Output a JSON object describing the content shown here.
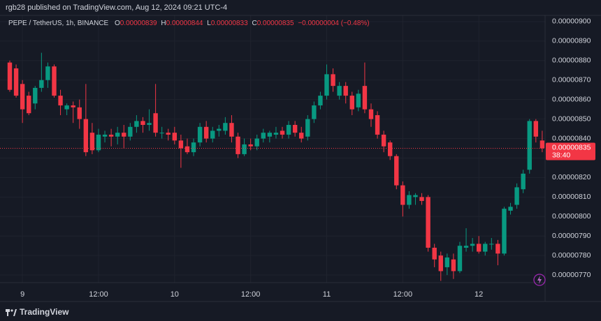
{
  "chart_data": {
    "type": "candlestick",
    "header": "rgb28 published on TradingView.com, Aug 12, 2024 09:21 UTC-4",
    "legend": {
      "symbol": "PEPE / TetherUS, 1h, BINANCE",
      "open_label": "O",
      "open": "0.00000839",
      "high_label": "H",
      "high": "0.00000844",
      "low_label": "L",
      "low": "0.00000833",
      "close_label": "C",
      "close": "0.00000835",
      "change": "−0.00000004 (−0.48%)"
    },
    "last_price_label": "0.00000835",
    "countdown": "38:40",
    "brand": "TradingView",
    "up_color": "#089981",
    "down_color": "#f23645",
    "categories": [
      null,
      null,
      "9",
      null,
      null,
      null,
      null,
      null,
      null,
      null,
      null,
      null,
      null,
      null,
      "12:00",
      null,
      null,
      null,
      null,
      null,
      null,
      null,
      null,
      null,
      null,
      null,
      "10",
      null,
      null,
      null,
      null,
      null,
      null,
      null,
      null,
      null,
      null,
      null,
      "12:00",
      null,
      null,
      null,
      null,
      null,
      null,
      null,
      null,
      null,
      null,
      null,
      "11",
      null,
      null,
      null,
      null,
      null,
      null,
      null,
      null,
      null,
      null,
      null,
      "12:00",
      null,
      null,
      null,
      null,
      null,
      null,
      null,
      null,
      null,
      null,
      null,
      "12",
      null,
      null,
      null,
      null,
      null,
      null,
      null,
      null,
      null,
      null
    ],
    "open": [
      8.79e-06,
      8.76e-06,
      8.68e-06,
      8.62e-06,
      8.58e-06,
      8.66e-06,
      8.7e-06,
      8.77e-06,
      8.62e-06,
      8.55e-06,
      8.57e-06,
      8.56e-06,
      8.5e-06,
      8.43e-06,
      8.34e-06,
      8.41e-06,
      8.42e-06,
      8.41e-06,
      8.43e-06,
      8.41e-06,
      8.46e-06,
      8.49e-06,
      8.47e-06,
      8.53e-06,
      8.43e-06,
      8.43e-06,
      8.43e-06,
      8.39e-06,
      8.36e-06,
      8.33e-06,
      8.38e-06,
      8.46e-06,
      8.4e-06,
      8.44e-06,
      8.44e-06,
      8.48e-06,
      8.41e-06,
      8.32e-06,
      8.37e-06,
      8.36e-06,
      8.4e-06,
      8.41e-06,
      8.42e-06,
      8.44e-06,
      8.42e-06,
      8.47e-06,
      8.43e-06,
      8.41e-06,
      8.5e-06,
      8.57e-06,
      8.62e-06,
      8.73e-06,
      8.62e-06,
      8.67e-06,
      8.62e-06,
      8.56e-06,
      8.67e-06,
      8.55e-06,
      8.52e-06,
      8.42e-06,
      8.38e-06,
      8.31e-06,
      8.16e-06,
      8.06e-06,
      8.1e-06,
      8.1e-06,
      8.1e-06,
      7.84e-06,
      7.8e-06,
      7.74e-06,
      7.78e-06,
      7.72e-06,
      7.84e-06,
      7.85e-06,
      7.86e-06,
      7.82e-06,
      7.86e-06,
      7.86e-06,
      7.81e-06,
      8.03e-06,
      8.06e-06,
      8.14e-06,
      8.24e-06,
      8.49e-06,
      8.39e-06
    ],
    "high": [
      8.8e-06,
      8.78e-06,
      8.7e-06,
      8.64e-06,
      8.67e-06,
      8.84e-06,
      8.79e-06,
      8.78e-06,
      8.65e-06,
      8.58e-06,
      8.59e-06,
      8.6e-06,
      8.68e-06,
      8.48e-06,
      8.45e-06,
      8.44e-06,
      8.45e-06,
      8.46e-06,
      8.47e-06,
      8.48e-06,
      8.52e-06,
      8.51e-06,
      8.55e-06,
      8.68e-06,
      8.46e-06,
      8.45e-06,
      8.46e-06,
      8.42e-06,
      8.4e-06,
      8.4e-06,
      8.48e-06,
      8.49e-06,
      8.46e-06,
      8.47e-06,
      8.51e-06,
      8.52e-06,
      8.43e-06,
      8.4e-06,
      8.4e-06,
      8.42e-06,
      8.45e-06,
      8.44e-06,
      8.46e-06,
      8.46e-06,
      8.49e-06,
      8.49e-06,
      8.46e-06,
      8.52e-06,
      8.59e-06,
      8.64e-06,
      8.78e-06,
      8.76e-06,
      8.69e-06,
      8.69e-06,
      8.64e-06,
      8.65e-06,
      8.79e-06,
      8.58e-06,
      8.54e-06,
      8.44e-06,
      8.39e-06,
      8.32e-06,
      8.18e-06,
      8.13e-06,
      8.12e-06,
      8.12e-06,
      8.11e-06,
      7.86e-06,
      7.82e-06,
      7.81e-06,
      7.81e-06,
      7.87e-06,
      7.94e-06,
      7.89e-06,
      7.9e-06,
      7.87e-06,
      7.89e-06,
      7.88e-06,
      8.05e-06,
      8.07e-06,
      8.17e-06,
      8.24e-06,
      8.5e-06,
      8.5e-06,
      8.44e-06
    ],
    "low": [
      8.64e-06,
      8.61e-06,
      8.48e-06,
      8.52e-06,
      8.55e-06,
      8.64e-06,
      8.66e-06,
      8.61e-06,
      8.52e-06,
      8.52e-06,
      8.48e-06,
      8.45e-06,
      8.31e-06,
      8.32e-06,
      8.33e-06,
      8.38e-06,
      8.36e-06,
      8.37e-06,
      8.35e-06,
      8.39e-06,
      8.43e-06,
      8.43e-06,
      8.44e-06,
      8.41e-06,
      8.4e-06,
      8.39e-06,
      8.37e-06,
      8.25e-06,
      8.32e-06,
      8.31e-06,
      8.36e-06,
      8.38e-06,
      8.38e-06,
      8.41e-06,
      8.42e-06,
      8.38e-06,
      8.3e-06,
      8.31e-06,
      8.34e-06,
      8.34e-06,
      8.38e-06,
      8.38e-06,
      8.4e-06,
      8.4e-06,
      8.4e-06,
      8.41e-06,
      8.38e-06,
      8.39e-06,
      8.48e-06,
      8.55e-06,
      8.6e-06,
      8.64e-06,
      8.6e-06,
      8.58e-06,
      8.52e-06,
      8.54e-06,
      8.53e-06,
      8.46e-06,
      8.4e-06,
      8.33e-06,
      8.29e-06,
      8.14e-06,
      8e-06,
      8.04e-06,
      8.06e-06,
      8.06e-06,
      7.82e-06,
      7.74e-06,
      7.67e-06,
      7.7e-06,
      7.68e-06,
      7.71e-06,
      7.82e-06,
      7.82e-06,
      7.81e-06,
      7.8e-06,
      7.83e-06,
      7.75e-06,
      7.8e-06,
      8.01e-06,
      8.04e-06,
      8.12e-06,
      8.22e-06,
      8.38e-06,
      8.33e-06
    ],
    "close": [
      8.65e-06,
      8.62e-06,
      8.55e-06,
      8.53e-06,
      8.66e-06,
      8.7e-06,
      8.77e-06,
      8.62e-06,
      8.57e-06,
      8.57e-06,
      8.56e-06,
      8.5e-06,
      8.33e-06,
      8.34e-06,
      8.42e-06,
      8.42e-06,
      8.41e-06,
      8.43e-06,
      8.41e-06,
      8.46e-06,
      8.49e-06,
      8.47e-06,
      8.48e-06,
      8.43e-06,
      8.43e-06,
      8.42e-06,
      8.39e-06,
      8.35e-06,
      8.33e-06,
      8.38e-06,
      8.46e-06,
      8.4e-06,
      8.44e-06,
      8.45e-06,
      8.48e-06,
      8.41e-06,
      8.32e-06,
      8.37e-06,
      8.36e-06,
      8.4e-06,
      8.43e-06,
      8.43e-06,
      8.43e-06,
      8.42e-06,
      8.47e-06,
      8.43e-06,
      8.4e-06,
      8.5e-06,
      8.57e-06,
      8.62e-06,
      8.73e-06,
      8.67e-06,
      8.67e-06,
      8.62e-06,
      8.55e-06,
      8.63e-06,
      8.55e-06,
      8.5e-06,
      8.42e-06,
      8.36e-06,
      8.31e-06,
      8.16e-06,
      8.06e-06,
      8.11e-06,
      8.11e-06,
      8.08e-06,
      7.84e-06,
      7.78e-06,
      7.72e-06,
      7.79e-06,
      7.72e-06,
      7.85e-06,
      7.85e-06,
      7.86e-06,
      7.82e-06,
      7.86e-06,
      7.86e-06,
      7.81e-06,
      8.04e-06,
      8.05e-06,
      8.15e-06,
      8.22e-06,
      8.49e-06,
      8.41e-06,
      8.35e-06
    ],
    "ylim": [
      7.661e-06,
      9.032e-06
    ],
    "yticks": [
      {
        "value": 9e-06,
        "label": "0.00000900"
      },
      {
        "value": 8.9e-06,
        "label": "0.00000890"
      },
      {
        "value": 8.8e-06,
        "label": "0.00000880"
      },
      {
        "value": 8.7e-06,
        "label": "0.00000870"
      },
      {
        "value": 8.6e-06,
        "label": "0.00000860"
      },
      {
        "value": 8.5e-06,
        "label": "0.00000850"
      },
      {
        "value": 8.4e-06,
        "label": "0.00000840"
      },
      {
        "value": 8.3e-06,
        "label": "0.00000830"
      },
      {
        "value": 8.2e-06,
        "label": "0.00000820"
      },
      {
        "value": 8.1e-06,
        "label": "0.00000810"
      },
      {
        "value": 8e-06,
        "label": "0.00000800"
      },
      {
        "value": 7.9e-06,
        "label": "0.00000790"
      },
      {
        "value": 7.8e-06,
        "label": "0.00000780"
      },
      {
        "value": 7.7e-06,
        "label": "0.00000770"
      }
    ],
    "grid": true
  }
}
